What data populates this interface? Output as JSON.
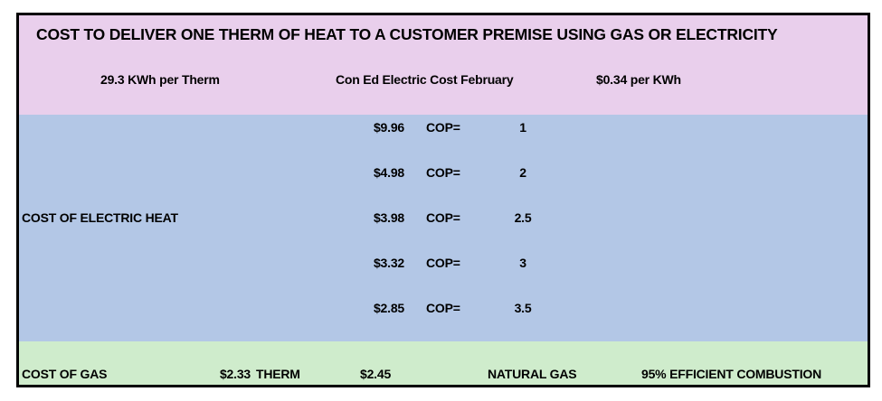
{
  "title": "COST TO DELIVER ONE THERM OF HEAT TO A CUSTOMER PREMISE USING GAS OR ELECTRICITY",
  "header": {
    "kwh_per_therm": "29.3 KWh per Therm",
    "source": "Con Ed Electric Cost February",
    "price": "$0.34  per KWh"
  },
  "electric": {
    "label": "COST OF ELECTRIC HEAT",
    "cop_label": "COP=",
    "rows": [
      {
        "cost": "$9.96",
        "cop": "1"
      },
      {
        "cost": "$4.98",
        "cop": "2"
      },
      {
        "cost": "$3.98",
        "cop": "2.5"
      },
      {
        "cost": "$3.32",
        "cop": "3"
      },
      {
        "cost": "$2.85",
        "cop": "3.5"
      }
    ]
  },
  "gas": {
    "label": "COST OF GAS",
    "price": "$2.33",
    "unit": "THERM",
    "adjusted": "$2.45",
    "fuel": "NATURAL GAS",
    "efficiency": "95% EFFICIENT COMBUSTION"
  },
  "colors": {
    "header_band": "#e9cfec",
    "electric_band": "#b3c7e6",
    "gas_band": "#cfeccc",
    "border": "#000000"
  }
}
